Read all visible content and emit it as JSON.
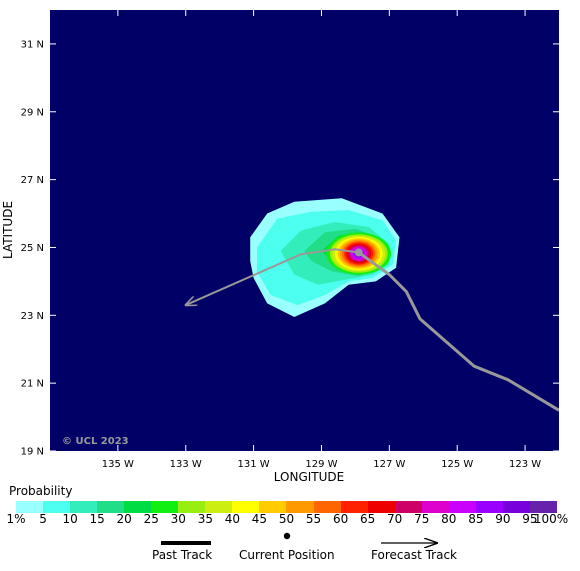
{
  "map": {
    "x_axis_title": "LONGITUDE",
    "y_axis_title": "LATITUDE",
    "copyright": "© UCL 2023",
    "lon_range": [
      -137.0,
      -122.0
    ],
    "lat_range": [
      19.0,
      32.0
    ],
    "ocean_color": "#000066",
    "lon_ticks": [
      {
        "value": -135,
        "label": "135 W"
      },
      {
        "value": -133,
        "label": "133 W"
      },
      {
        "value": -131,
        "label": "131 W"
      },
      {
        "value": -129,
        "label": "129 W"
      },
      {
        "value": -127,
        "label": "127 W"
      },
      {
        "value": -125,
        "label": "125 W"
      },
      {
        "value": -123,
        "label": "123 W"
      }
    ],
    "lat_ticks": [
      {
        "value": 31,
        "label": "31 N"
      },
      {
        "value": 29,
        "label": "29 N"
      },
      {
        "value": 27,
        "label": "27 N"
      },
      {
        "value": 25,
        "label": "25 N"
      },
      {
        "value": 23,
        "label": "23 N"
      },
      {
        "value": 21,
        "label": "21 N"
      },
      {
        "value": 19,
        "label": "19 N"
      }
    ],
    "current_position": {
      "lon": -127.9,
      "lat": 24.85
    },
    "past_track": [
      {
        "lon": -127.9,
        "lat": 24.85
      },
      {
        "lon": -127.0,
        "lat": 24.2
      },
      {
        "lon": -126.5,
        "lat": 23.7
      },
      {
        "lon": -126.1,
        "lat": 22.9
      },
      {
        "lon": -124.5,
        "lat": 21.5
      },
      {
        "lon": -123.5,
        "lat": 21.1
      },
      {
        "lon": -122.0,
        "lat": 20.2
      }
    ],
    "forecast_track": [
      {
        "lon": -127.9,
        "lat": 24.85
      },
      {
        "lon": -128.6,
        "lat": 24.95
      },
      {
        "lon": -129.6,
        "lat": 24.8
      },
      {
        "lon": -133.0,
        "lat": 23.3
      }
    ],
    "track_color": "#999999",
    "probability_field": {
      "center": {
        "lon": -127.9,
        "lat": 24.82
      },
      "contours": [
        {
          "level": 1,
          "color": "#99ffff",
          "shape": [
            [
              -131.1,
              25.3
            ],
            [
              -130.6,
              26.0
            ],
            [
              -129.8,
              26.35
            ],
            [
              -128.4,
              26.45
            ],
            [
              -127.2,
              26.0
            ],
            [
              -126.7,
              25.3
            ],
            [
              -126.8,
              24.4
            ],
            [
              -127.4,
              24.0
            ],
            [
              -128.2,
              23.9
            ],
            [
              -128.9,
              23.35
            ],
            [
              -129.8,
              22.95
            ],
            [
              -130.6,
              23.35
            ],
            [
              -131.0,
              24.1
            ],
            [
              -131.1,
              24.6
            ]
          ]
        },
        {
          "level": 5,
          "color": "#4dffee",
          "shape": [
            [
              -130.9,
              25.0
            ],
            [
              -130.3,
              25.85
            ],
            [
              -129.3,
              26.05
            ],
            [
              -128.2,
              26.1
            ],
            [
              -127.2,
              25.8
            ],
            [
              -126.8,
              25.2
            ],
            [
              -126.9,
              24.5
            ],
            [
              -127.5,
              24.1
            ],
            [
              -128.2,
              24.0
            ],
            [
              -128.9,
              23.6
            ],
            [
              -129.7,
              23.3
            ],
            [
              -130.5,
              23.6
            ],
            [
              -130.9,
              24.3
            ]
          ]
        },
        {
          "level": 10,
          "color": "#33eebb",
          "shape": [
            [
              -130.2,
              24.9
            ],
            [
              -129.6,
              25.5
            ],
            [
              -128.6,
              25.75
            ],
            [
              -127.6,
              25.6
            ],
            [
              -127.0,
              25.1
            ],
            [
              -127.0,
              24.5
            ],
            [
              -127.5,
              24.2
            ],
            [
              -128.3,
              24.05
            ],
            [
              -129.1,
              23.9
            ],
            [
              -129.8,
              24.2
            ]
          ]
        },
        {
          "level": 15,
          "color": "#22dd88",
          "shape": [
            [
              -129.5,
              24.9
            ],
            [
              -128.9,
              25.45
            ],
            [
              -128.0,
              25.55
            ],
            [
              -127.3,
              25.3
            ],
            [
              -127.05,
              24.85
            ],
            [
              -127.3,
              24.35
            ],
            [
              -127.9,
              24.15
            ],
            [
              -128.7,
              24.3
            ],
            [
              -129.3,
              24.6
            ]
          ]
        },
        {
          "level": 20,
          "color": "#00dd44",
          "shape": [
            [
              -129.0,
              24.9
            ],
            [
              -128.5,
              25.35
            ],
            [
              -127.8,
              25.45
            ],
            [
              -127.25,
              25.2
            ],
            [
              -127.1,
              24.8
            ],
            [
              -127.35,
              24.35
            ],
            [
              -127.9,
              24.2
            ],
            [
              -128.5,
              24.4
            ]
          ]
        },
        {
          "level": 25,
          "color": "#11ee11",
          "ring": {
            "rx": 0.95,
            "ry": 0.62
          }
        },
        {
          "level": 30,
          "color": "#99ee11",
          "ring": {
            "rx": 0.85,
            "ry": 0.57
          }
        },
        {
          "level": 35,
          "color": "#ccee11",
          "ring": {
            "rx": 0.78,
            "ry": 0.53
          }
        },
        {
          "level": 40,
          "color": "#ffff00",
          "ring": {
            "rx": 0.7,
            "ry": 0.49
          }
        },
        {
          "level": 45,
          "color": "#ffcc00",
          "ring": {
            "rx": 0.63,
            "ry": 0.45
          }
        },
        {
          "level": 50,
          "color": "#ff9900",
          "ring": {
            "rx": 0.56,
            "ry": 0.41
          }
        },
        {
          "level": 55,
          "color": "#ff6600",
          "ring": {
            "rx": 0.49,
            "ry": 0.37
          }
        },
        {
          "level": 60,
          "color": "#ff2200",
          "ring": {
            "rx": 0.43,
            "ry": 0.33
          }
        },
        {
          "level": 65,
          "color": "#ee0000",
          "ring": {
            "rx": 0.37,
            "ry": 0.29
          }
        },
        {
          "level": 70,
          "color": "#cc0066",
          "ring": {
            "rx": 0.31,
            "ry": 0.25
          }
        },
        {
          "level": 75,
          "color": "#dd00cc",
          "ring": {
            "rx": 0.26,
            "ry": 0.21
          }
        },
        {
          "level": 80,
          "color": "#cc00ff",
          "ring": {
            "rx": 0.21,
            "ry": 0.17
          }
        },
        {
          "level": 85,
          "color": "#9900ff",
          "ring": {
            "rx": 0.16,
            "ry": 0.13
          }
        },
        {
          "level": 90,
          "color": "#7700dd",
          "ring": {
            "rx": 0.12,
            "ry": 0.1
          }
        },
        {
          "level": 95,
          "color": "#6622aa",
          "ring": {
            "rx": 0.08,
            "ry": 0.07
          }
        }
      ]
    }
  },
  "legend": {
    "title": "Probability",
    "bins": [
      {
        "label": "1%",
        "color": "#99ffff"
      },
      {
        "label": "5",
        "color": "#4dffee"
      },
      {
        "label": "10",
        "color": "#33eebb"
      },
      {
        "label": "15",
        "color": "#22dd88"
      },
      {
        "label": "20",
        "color": "#00dd44"
      },
      {
        "label": "25",
        "color": "#11ee11"
      },
      {
        "label": "30",
        "color": "#99ee11"
      },
      {
        "label": "35",
        "color": "#ccee11"
      },
      {
        "label": "40",
        "color": "#ffff00"
      },
      {
        "label": "45",
        "color": "#ffcc00"
      },
      {
        "label": "50",
        "color": "#ff9900"
      },
      {
        "label": "55",
        "color": "#ff6600"
      },
      {
        "label": "60",
        "color": "#ff2200"
      },
      {
        "label": "65",
        "color": "#ee0000"
      },
      {
        "label": "70",
        "color": "#cc0066"
      },
      {
        "label": "75",
        "color": "#dd00cc"
      },
      {
        "label": "80",
        "color": "#cc00ff"
      },
      {
        "label": "85",
        "color": "#9900ff"
      },
      {
        "label": "90",
        "color": "#7700dd"
      },
      {
        "label": "95",
        "color": "#6622aa"
      }
    ],
    "end_label": "100%"
  },
  "key": {
    "past_track": "Past Track",
    "current_position": "Current Position",
    "forecast_track": "Forecast Track"
  }
}
